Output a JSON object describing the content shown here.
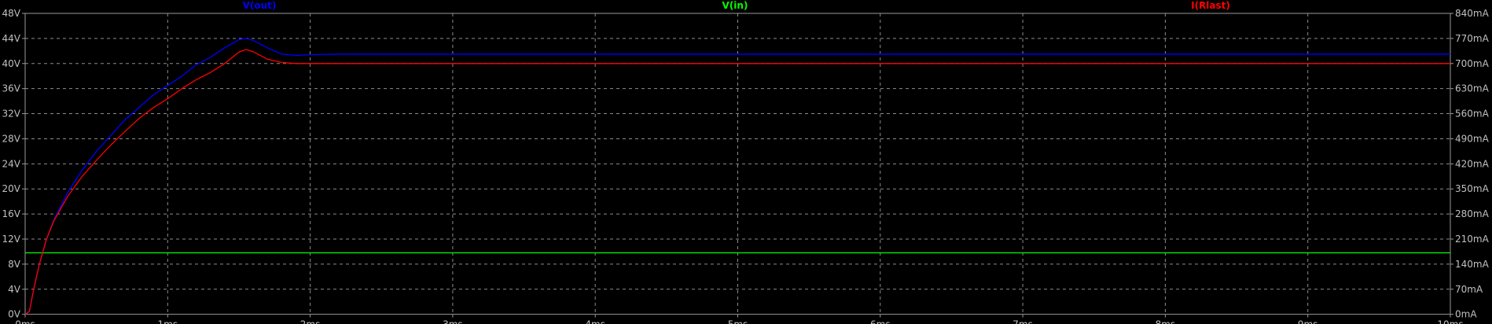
{
  "chart_data": {
    "type": "line",
    "x_ticks": [
      "0ms",
      "1ms",
      "2ms",
      "3ms",
      "4ms",
      "5ms",
      "6ms",
      "7ms",
      "8ms",
      "9ms",
      "10ms"
    ],
    "x_range_ms": [
      0,
      10
    ],
    "left_axis": {
      "ticks": [
        "0V",
        "4V",
        "8V",
        "12V",
        "16V",
        "20V",
        "24V",
        "28V",
        "32V",
        "36V",
        "40V",
        "44V",
        "48V"
      ],
      "range": [
        0,
        48
      ],
      "unit": "V"
    },
    "right_axis": {
      "ticks": [
        "0mA",
        "70mA",
        "140mA",
        "210mA",
        "280mA",
        "350mA",
        "420mA",
        "490mA",
        "560mA",
        "630mA",
        "700mA",
        "770mA",
        "840mA"
      ],
      "range": [
        0,
        840
      ],
      "unit": "mA"
    },
    "grid": true,
    "series": [
      {
        "name": "V(out)",
        "color": "#0000ff",
        "axis": "left",
        "x": [
          0,
          0.03,
          0.06,
          0.1,
          0.15,
          0.2,
          0.3,
          0.4,
          0.5,
          0.6,
          0.7,
          0.8,
          0.9,
          1.0,
          1.1,
          1.2,
          1.3,
          1.4,
          1.5,
          1.55,
          1.6,
          1.7,
          1.8,
          1.9,
          2.0,
          2.2,
          3,
          4,
          5,
          6,
          7,
          8,
          9,
          10
        ],
        "y": [
          0,
          0.5,
          4,
          8,
          12,
          15,
          19.5,
          23,
          26,
          28.5,
          31,
          33,
          35,
          36.5,
          38,
          39.8,
          41,
          42.5,
          43.8,
          44,
          43.7,
          42.5,
          41.5,
          41.3,
          41.4,
          41.5,
          41.5,
          41.5,
          41.5,
          41.5,
          41.5,
          41.5,
          41.5,
          41.5
        ]
      },
      {
        "name": "V(in)",
        "color": "#00ff00",
        "axis": "left",
        "x": [
          0,
          10
        ],
        "y": [
          9.8,
          9.8
        ]
      },
      {
        "name": "I(Rlast)",
        "color": "#ff0000",
        "axis": "right",
        "x": [
          0,
          0.03,
          0.06,
          0.1,
          0.15,
          0.2,
          0.3,
          0.4,
          0.5,
          0.6,
          0.7,
          0.8,
          0.9,
          1.0,
          1.1,
          1.2,
          1.3,
          1.4,
          1.5,
          1.55,
          1.6,
          1.7,
          1.8,
          1.9,
          2.0,
          2.2,
          3,
          4,
          5,
          6,
          7,
          8,
          9,
          10
        ],
        "y": [
          0,
          8,
          70,
          140,
          210,
          260,
          330,
          385,
          430,
          472,
          510,
          547,
          577,
          602,
          630,
          655,
          675,
          700,
          732,
          739,
          733,
          712,
          703,
          700,
          700,
          700,
          700,
          700,
          700,
          700,
          700,
          700,
          700,
          700
        ]
      }
    ]
  }
}
